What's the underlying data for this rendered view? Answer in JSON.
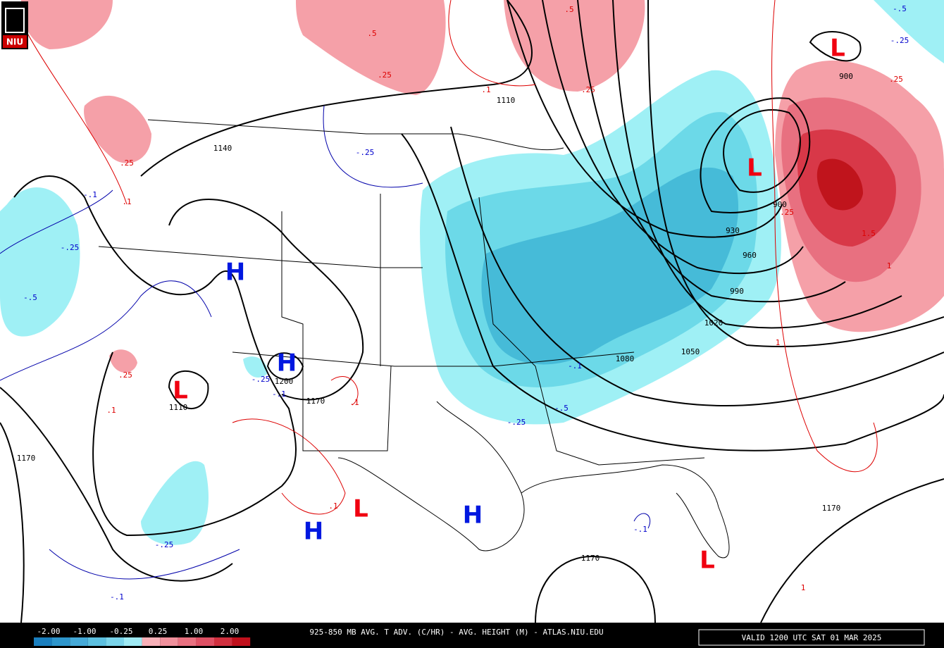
{
  "logo": "NIU",
  "height_labels": [
    "1110",
    "1140",
    "1110",
    "1200",
    "1170",
    "1170",
    "900",
    "900",
    "930",
    "960",
    "990",
    "1020",
    "1050",
    "1080",
    "1170",
    "1170"
  ],
  "warm_labels": [
    ".5",
    ".5",
    ".25",
    ".25",
    ".1",
    ".25",
    ".1",
    ".25",
    ".1",
    ".1",
    ".1",
    ".25",
    ".25",
    "1.5",
    "1",
    "1",
    "1"
  ],
  "cold_labels": [
    "-.25",
    "-.1",
    "-.25",
    "-.5",
    "-.25",
    "-.1",
    "-.25",
    "-.5",
    "-.1",
    "-.25",
    "-.1",
    "-.1",
    "-.5",
    "-.25"
  ],
  "highs": [
    "H",
    "H",
    "H",
    "H"
  ],
  "lows": [
    "L",
    "L",
    "L",
    "L",
    "L"
  ],
  "colorbar": {
    "labels": [
      "-2.00",
      "-1.00",
      "-0.25",
      "0.25",
      "1.00",
      "2.00"
    ]
  },
  "footer": {
    "title": "925-850 MB AVG. T ADV. (C/HR) - AVG. HEIGHT (M) - ATLAS.NIU.EDU",
    "valid": "VALID 1200 UTC SAT 01 MAR 2025"
  }
}
